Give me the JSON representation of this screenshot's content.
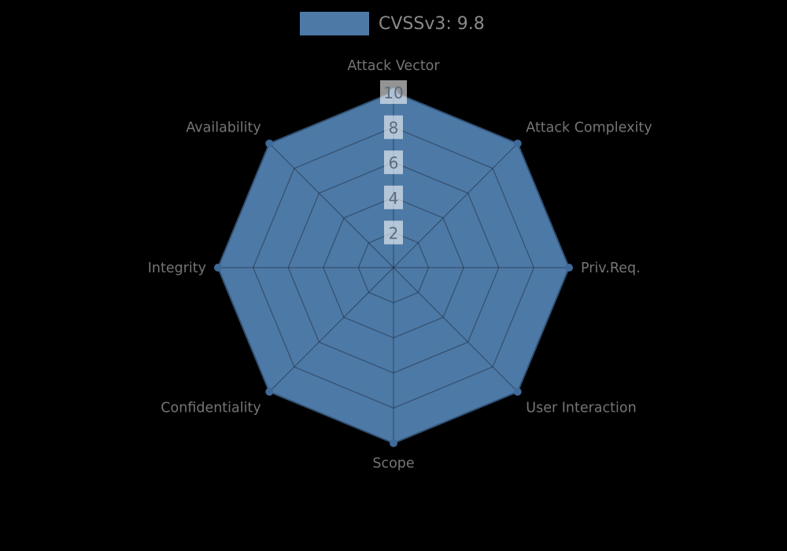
{
  "legend": {
    "label": "CVSSv3: 9.8",
    "swatch_color": "#4d79a6"
  },
  "chart_data": {
    "type": "radar",
    "categories": [
      "Attack Vector",
      "Attack Complexity",
      "Priv.Req.",
      "User Interaction",
      "Scope",
      "Confidentiality",
      "Integrity",
      "Availability"
    ],
    "series": [
      {
        "name": "CVSSv3: 9.8",
        "values": [
          10,
          10,
          10,
          10,
          10,
          10,
          10,
          10
        ],
        "color": "#4d79a6",
        "stroke_color": "#426d9c",
        "marker_color": "#3f6a99"
      }
    ],
    "ticks": [
      2,
      4,
      6,
      8,
      10
    ],
    "range": [
      0,
      10
    ],
    "grid": true,
    "legend_position": "top-center",
    "axis_label_color": "#757575",
    "tick_label_color": "#5c6a7d",
    "tick_box_color": "rgba(255,255,255,0.58)",
    "grid_color": "rgba(25,35,50,0.45)",
    "background_color": "#000000"
  }
}
